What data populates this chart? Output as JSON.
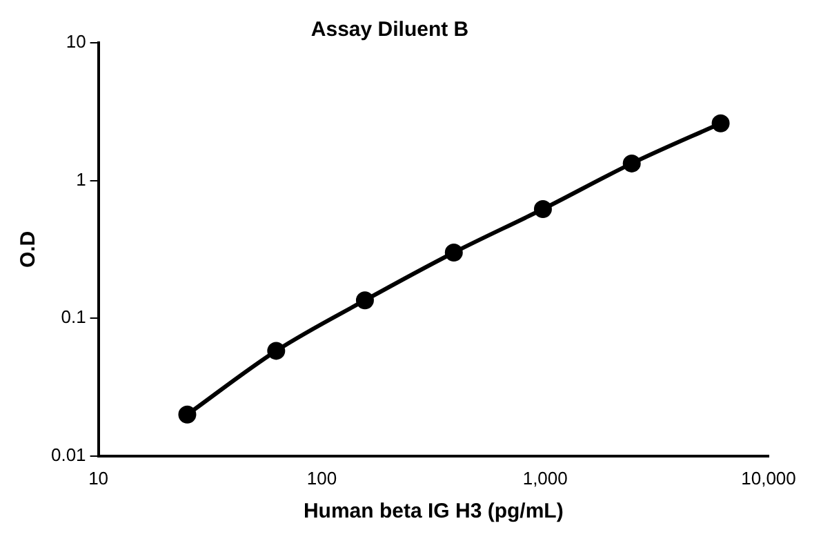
{
  "chart_data": {
    "type": "line",
    "title": "Assay Diluent B",
    "xlabel": "Human beta IG H3 (pg/mL)",
    "ylabel": "O.D",
    "x": [
      25,
      62.5,
      156,
      390,
      977,
      2441,
      6103
    ],
    "series": [
      {
        "color": "#000000",
        "values": [
          0.02,
          0.058,
          0.135,
          0.3,
          0.62,
          1.33,
          2.6
        ]
      }
    ],
    "log": "xy",
    "xlim": [
      10,
      10000
    ],
    "ylim": [
      0.01,
      10
    ],
    "xticks": [
      10,
      100,
      {
        "value": 1000,
        "label": "1,000"
      },
      {
        "value": 10000,
        "label": "10,000"
      }
    ],
    "yticks": [
      0.01,
      0.1,
      1,
      10
    ],
    "grid": false,
    "legend": false,
    "marker": "circle",
    "line_style": "solid"
  }
}
